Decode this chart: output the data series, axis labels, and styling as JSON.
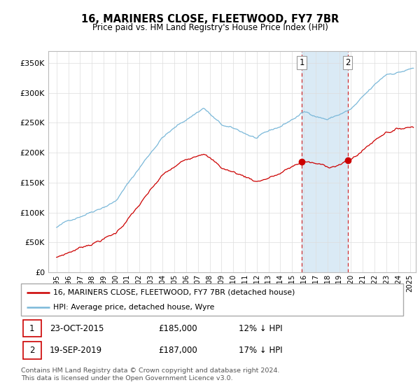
{
  "title": "16, MARINERS CLOSE, FLEETWOOD, FY7 7BR",
  "subtitle": "Price paid vs. HM Land Registry's House Price Index (HPI)",
  "ylabel_ticks": [
    "£0",
    "£50K",
    "£100K",
    "£150K",
    "£200K",
    "£250K",
    "£300K",
    "£350K"
  ],
  "ytick_vals": [
    0,
    50000,
    100000,
    150000,
    200000,
    250000,
    300000,
    350000
  ],
  "ylim": [
    0,
    370000
  ],
  "legend_line1": "16, MARINERS CLOSE, FLEETWOOD, FY7 7BR (detached house)",
  "legend_line2": "HPI: Average price, detached house, Wyre",
  "transaction1_date": "23-OCT-2015",
  "transaction1_price": "£185,000",
  "transaction1_hpi": "12% ↓ HPI",
  "transaction2_date": "19-SEP-2019",
  "transaction2_price": "£187,000",
  "transaction2_hpi": "17% ↓ HPI",
  "footer": "Contains HM Land Registry data © Crown copyright and database right 2024.\nThis data is licensed under the Open Government Licence v3.0.",
  "hpi_color": "#7ab8d9",
  "price_color": "#cc0000",
  "highlight_color": "#daeaf5",
  "marker1_year": 2015.82,
  "marker2_year": 2019.72,
  "marker1_price": 185000,
  "marker2_price": 187000
}
